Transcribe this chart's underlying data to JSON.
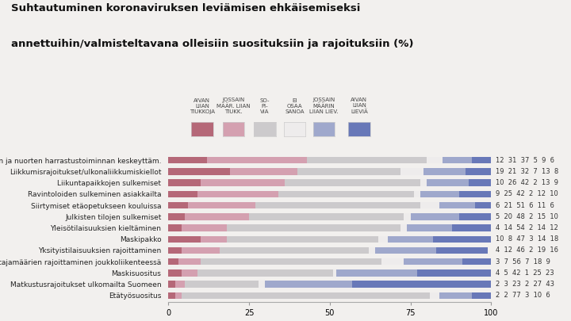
{
  "title_line1": "Suhtautuminen koronaviruksen leviämisen ehkäisemiseksi",
  "title_line2": "annettuihin/valmisteltavana olleisiin suosituksiin ja rajoituksiin (%)",
  "categories": [
    "Lasten ja nuorten harrastustoiminnan keskeyttäm.",
    "Liikkumisrajoitukset/ulkonaliikkumiskiellot",
    "Liikuntapaikkojen sulkemiset",
    "Ravintoloiden sulkeminen asiakkailta",
    "Siirtymiset etäopetukseen kouluissa",
    "Julkisten tilojen sulkemiset",
    "Yleisötilaisuuksien kieltäminen",
    "Maskipakko",
    "Yksityistilaisuuksien rajoittaminen",
    "Matkustajamäärien rajoittaminen joukkoliikenteessä",
    "Maskisuositus",
    "Matkustusrajoitukset ulkomailta Suomeen",
    "Etätyösuositus"
  ],
  "legend_labels": [
    "AIVAN\nLIIAN\nTIUKKOJA",
    "JOSSAIN\nMÄÄR. LIIAN\nTIUKK.",
    "SO-\nPI-\nVIA",
    "EI\nOSAA\nSANOA",
    "JOSSAIN\nMÄÄRIN\nLIIAN LIEV.",
    "AIVAN\nLIIAN\nLIEVIÄ"
  ],
  "colors": [
    "#b56878",
    "#d4a0b0",
    "#cccacc",
    "#eeecec",
    "#9fa8cc",
    "#6878b8"
  ],
  "data": [
    [
      12,
      31,
      37,
      5,
      9,
      6
    ],
    [
      19,
      21,
      32,
      7,
      13,
      8
    ],
    [
      10,
      26,
      42,
      2,
      13,
      9
    ],
    [
      9,
      25,
      42,
      2,
      12,
      10
    ],
    [
      6,
      21,
      51,
      6,
      11,
      6
    ],
    [
      5,
      20,
      48,
      2,
      15,
      10
    ],
    [
      4,
      14,
      54,
      2,
      14,
      12
    ],
    [
      10,
      8,
      47,
      3,
      14,
      18
    ],
    [
      4,
      12,
      46,
      2,
      19,
      16
    ],
    [
      3,
      7,
      56,
      7,
      18,
      9
    ],
    [
      4,
      5,
      42,
      1,
      25,
      23
    ],
    [
      2,
      3,
      23,
      2,
      27,
      43
    ],
    [
      2,
      2,
      77,
      3,
      10,
      6
    ]
  ],
  "xlabel_ticks": [
    0,
    25,
    50,
    75,
    100
  ],
  "background_color": "#f2f0ee",
  "bar_height": 0.6,
  "label_fontsize": 6.0,
  "cat_fontsize": 6.5,
  "tick_fontsize": 7.0
}
